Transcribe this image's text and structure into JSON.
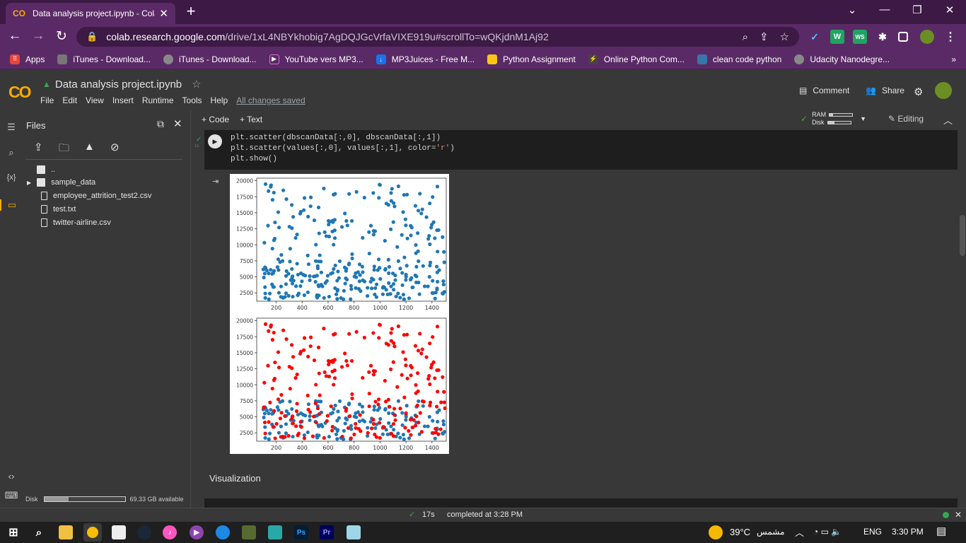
{
  "browser": {
    "tab_title": "Data analysis project.ipynb - Cola",
    "url_host": "colab.research.google.com",
    "url_path": "/drive/1xL4NBYkhobig7AgDQJGcVrfaVIXE919u#scrollTo=wQKjdnM1Aj92"
  },
  "bookmarks": [
    "Apps",
    "iTunes - Download...",
    "iTunes - Download...",
    "YouTube vers MP3...",
    "MP3Juices - Free M...",
    "Python Assignment",
    "Online Python Com...",
    "clean code python",
    "Udacity Nanodegre..."
  ],
  "notebook": {
    "title": "Data analysis project.ipynb",
    "menu": [
      "File",
      "Edit",
      "View",
      "Insert",
      "Runtime",
      "Tools",
      "Help"
    ],
    "saved": "All changes saved",
    "comment": "Comment",
    "share": "Share"
  },
  "sidebar": {
    "title": "Files",
    "items": [
      "..",
      "sample_data",
      "employee_attrition_test2.csv",
      "test.txt",
      "twitter-airline.csv"
    ],
    "disk_label": "Disk",
    "disk_available": "69.33 GB available",
    "disk_used_fraction": 0.3
  },
  "toolbar": {
    "code": "+ Code",
    "text": "+ Text",
    "ram": "RAM",
    "disk": "Disk",
    "editing": "Editing"
  },
  "cell": {
    "line1": "plt.scatter(dbscanData[:,0], dbscanData[:,1])",
    "line2a": "plt.scatter(values[:,0], values[:,1], color=",
    "line2b": "'r'",
    "line2c": ")",
    "line3": "plt.show()",
    "exec_time": "1s"
  },
  "section": "Visualization",
  "status": {
    "duration": "17s",
    "completed": "completed at 3:28 PM"
  },
  "taskbar": {
    "weather": "39°C",
    "weather_text": "مشمس",
    "lang": "ENG",
    "time": "3:30 PM"
  },
  "chart_data": [
    {
      "type": "scatter",
      "xticks": [
        "200",
        "400",
        "600",
        "800",
        "1000",
        "1200",
        "1400"
      ],
      "yticks": [
        "2500",
        "5000",
        "7500",
        "10000",
        "12500",
        "15000",
        "17500",
        "20000"
      ],
      "xlim": [
        50,
        1510
      ],
      "ylim": [
        1200,
        20400
      ],
      "series": [
        {
          "color": "#1f77b4",
          "seed": 7
        }
      ]
    },
    {
      "type": "scatter",
      "xticks": [
        "200",
        "400",
        "600",
        "800",
        "1000",
        "1200",
        "1400"
      ],
      "yticks": [
        "2500",
        "5000",
        "7500",
        "10000",
        "12500",
        "15000",
        "17500",
        "20000"
      ],
      "xlim": [
        50,
        1510
      ],
      "ylim": [
        1200,
        20400
      ],
      "series": [
        {
          "color": "#1f77b4",
          "seed": 7
        },
        {
          "color": "#ff0000",
          "seed": 7
        }
      ]
    }
  ]
}
